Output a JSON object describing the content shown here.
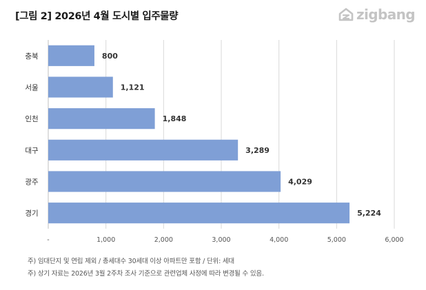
{
  "header": {
    "title": "[그림 2] 2026년 4월 도시별 입주물량",
    "brand": "zigbang",
    "brand_icon": "house-logo-icon",
    "brand_color": "#c4c4c4"
  },
  "chart_data": {
    "type": "bar",
    "orientation": "horizontal",
    "title": "[그림 2] 2026년 4월 도시별 입주물량",
    "categories": [
      "충북",
      "서울",
      "인천",
      "대구",
      "광주",
      "경기"
    ],
    "values": [
      800,
      1121,
      1848,
      3289,
      4029,
      5224
    ],
    "value_labels": [
      "800",
      "1,121",
      "1,848",
      "3,289",
      "4,029",
      "5,224"
    ],
    "xlim": [
      0,
      6000
    ],
    "x_ticks": [
      0,
      1000,
      2000,
      3000,
      4000,
      5000,
      6000
    ],
    "x_tick_labels": [
      "-",
      "1,000",
      "2,000",
      "3,000",
      "4,000",
      "5,000",
      "6,000"
    ],
    "xlabel": "",
    "ylabel": "",
    "grid": true,
    "legend": "none",
    "bar_color": "#7f9fd6"
  },
  "footnotes": [
    "주) 임대단지 및 연립 제외 / 총세대수 30세대 이상 아파트만 포함 / 단위: 세대",
    "주) 상기 자료는 2026년 3월 2주차 조사 기준으로 관련업체 사정에 따라 변경될 수 있음."
  ]
}
